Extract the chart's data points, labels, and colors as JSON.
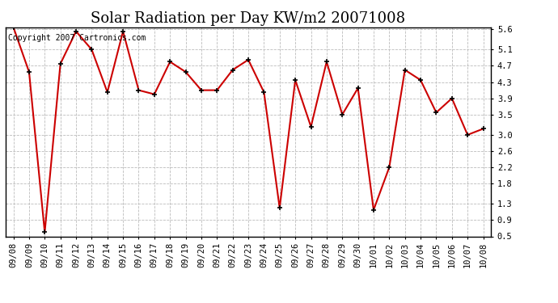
{
  "title": "Solar Radiation per Day KW/m2 20071008",
  "copyright_text": "Copyright 2007 Cartronics.com",
  "dates": [
    "09/08",
    "09/09",
    "09/10",
    "09/11",
    "09/12",
    "09/13",
    "09/14",
    "09/15",
    "09/16",
    "09/17",
    "09/18",
    "09/19",
    "09/20",
    "09/21",
    "09/22",
    "09/23",
    "09/24",
    "09/25",
    "09/26",
    "09/27",
    "09/28",
    "09/29",
    "09/30",
    "10/01",
    "10/02",
    "10/03",
    "10/04",
    "10/05",
    "10/06",
    "10/07",
    "10/08"
  ],
  "values": [
    5.65,
    4.55,
    0.6,
    4.75,
    5.55,
    5.1,
    4.05,
    5.55,
    4.1,
    4.0,
    4.8,
    4.55,
    4.1,
    4.1,
    4.6,
    4.85,
    4.05,
    1.2,
    4.35,
    3.2,
    4.8,
    3.5,
    4.15,
    1.15,
    2.2,
    4.6,
    4.35,
    3.55,
    3.9,
    3.0,
    3.15
  ],
  "line_color": "#cc0000",
  "marker_color": "#000000",
  "bg_color": "#ffffff",
  "plot_bg_color": "#ffffff",
  "grid_color": "#bbbbbb",
  "ylim": [
    0.5,
    5.65
  ],
  "yticks": [
    0.5,
    0.9,
    1.3,
    1.8,
    2.2,
    2.6,
    3.0,
    3.5,
    3.9,
    4.3,
    4.7,
    5.1,
    5.6
  ],
  "title_fontsize": 13,
  "tick_fontsize": 7.5,
  "copyright_fontsize": 7
}
